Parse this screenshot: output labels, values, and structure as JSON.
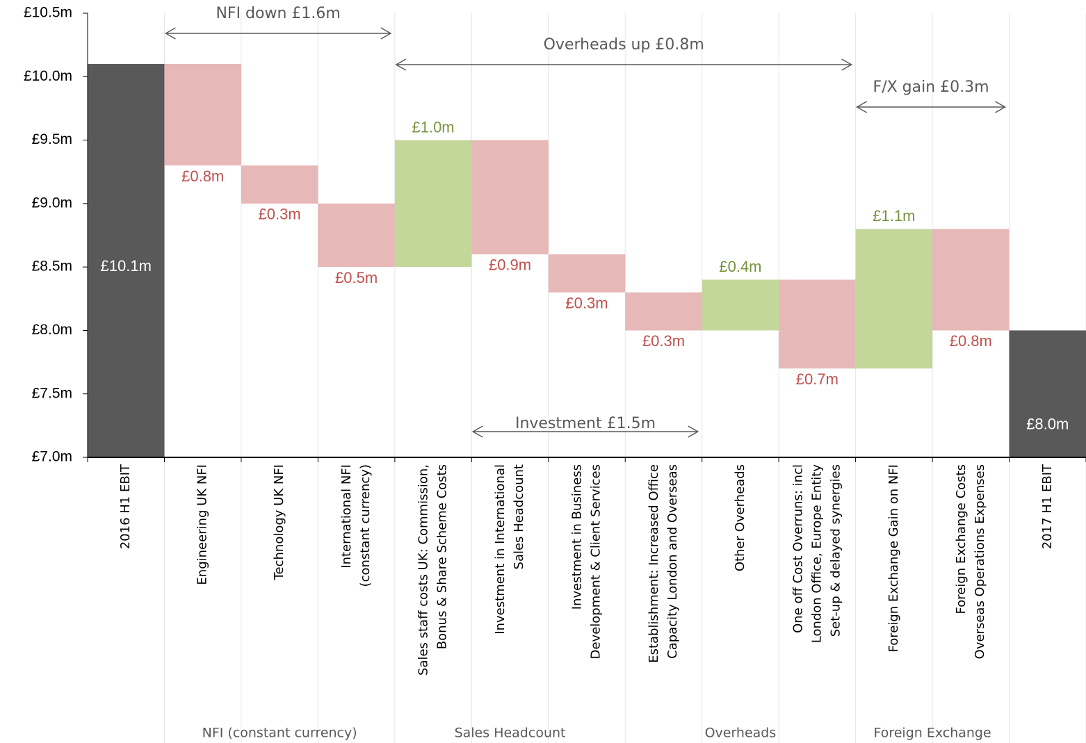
{
  "chart_data": {
    "type": "waterfall",
    "categories": [
      "2016 H1 EBIT",
      "Engineering UK NFI",
      "Technology UK NFI",
      "International NFI\n(constant currency)",
      "Sales staff costs UK: Commission,\nBonus & Share Scheme Costs",
      "Investment in International\nSales Headcount",
      "Investment in Business\nDevelopment & Client Services",
      "Establishment: Increased Office\nCapacity London and Overseas",
      "Other Overheads",
      "One off Cost Overruns: incl\nLondon Office, Europe Entity\nSet-up & delayed synergies",
      "Foreign Exchange Gain on NFI",
      "Foreign Exchange Costs\nOverseas Operations Expenses",
      "2017 H1 EBIT"
    ],
    "values": [
      10.1,
      -0.8,
      -0.3,
      -0.5,
      1.0,
      -0.9,
      -0.3,
      -0.3,
      0.4,
      -0.7,
      1.1,
      -0.8,
      8.0
    ],
    "value_labels": [
      "£10.1m",
      "£0.8m",
      "£0.3m",
      "£0.5m",
      "£1.0m",
      "£0.9m",
      "£0.3m",
      "£0.3m",
      "£0.4m",
      "£0.7m",
      "£1.1m",
      "£0.8m",
      "£8.0m"
    ],
    "total_bars": [
      0,
      12
    ],
    "colors": {
      "total": "#595959",
      "increase": "#c4d79b",
      "decrease": "#e6b8b7",
      "increase_label": "#77933c",
      "decrease_label": "#c0504d",
      "total_label": "#ffffff"
    },
    "groups": [
      "NFI (constant currency)",
      "Sales Headcount",
      "Overheads",
      "Foreign Exchange"
    ],
    "annotations": [
      "NFI down £1.6m",
      "Overheads up £0.8m",
      "F/X  gain £0.3m",
      "Investment £1.5m"
    ],
    "ylim": [
      7.0,
      10.5
    ],
    "yticks": [
      {
        "value": 7.0,
        "label": "£7.0m"
      },
      {
        "value": 7.5,
        "label": "£7.5m"
      },
      {
        "value": 8.0,
        "label": "£8.0m"
      },
      {
        "value": 8.5,
        "label": "£8.5m"
      },
      {
        "value": 9.0,
        "label": "£9.0m"
      },
      {
        "value": 9.5,
        "label": "£9.5m"
      },
      {
        "value": 10.0,
        "label": "£10.0m"
      },
      {
        "value": 10.5,
        "label": "£10.5m"
      }
    ]
  }
}
